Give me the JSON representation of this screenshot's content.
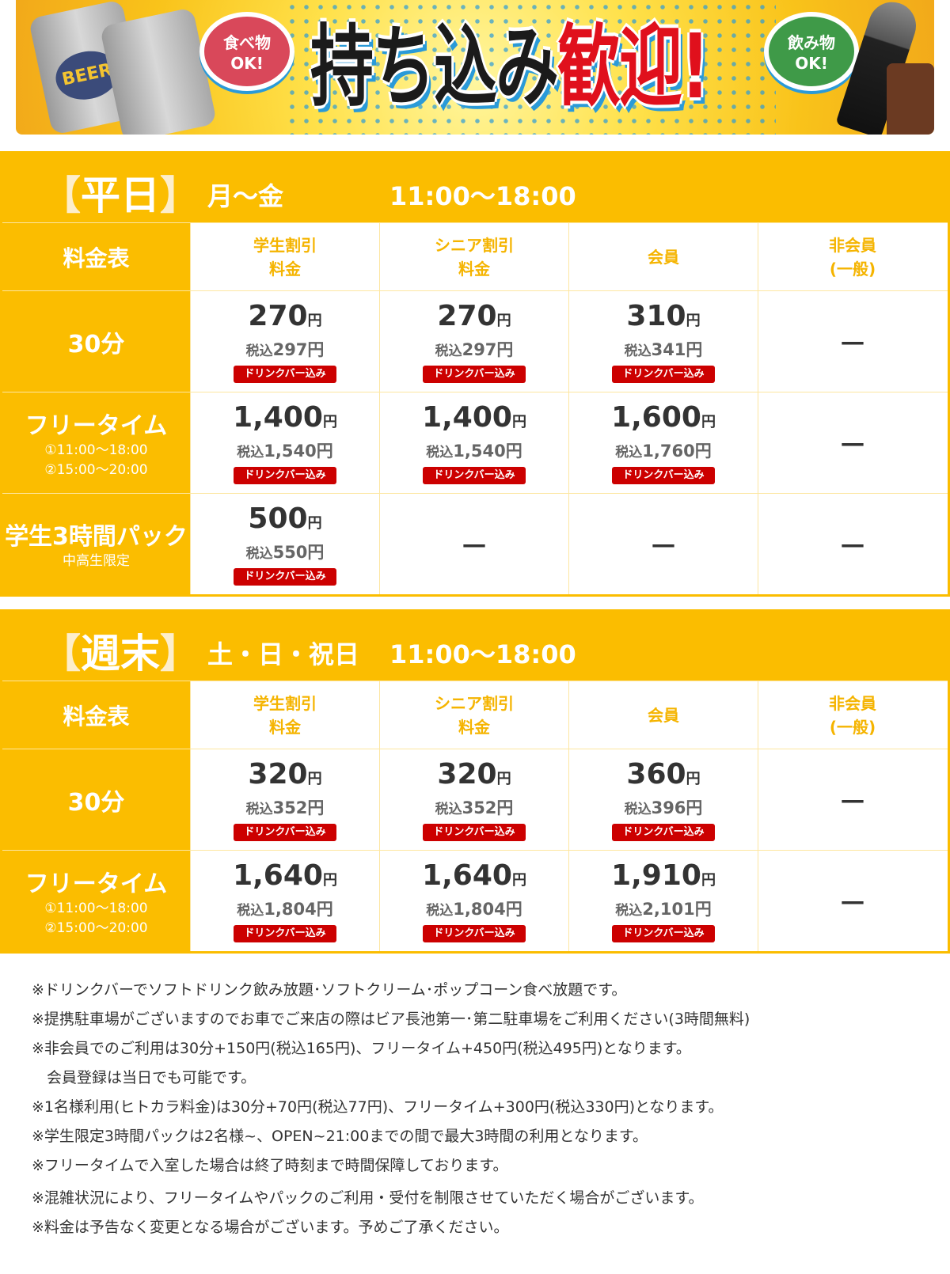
{
  "banner": {
    "title_black": "持ち込み",
    "title_red": "歓迎!",
    "food_bubble": [
      "食べ物",
      "OK!"
    ],
    "drink_bubble": [
      "飲み物",
      "OK!"
    ],
    "can_label": "BEER"
  },
  "colors": {
    "accent": "#fbbd00",
    "badge": "#cc0000",
    "header_text": "#f5b400"
  },
  "sections": [
    {
      "tag_open": "【",
      "tag": "平日",
      "tag_close": "】",
      "days": "月～金",
      "hours": "11:00～18:00",
      "corner": "料金表",
      "columns": [
        [
          "学生割引",
          "料金"
        ],
        [
          "シニア割引",
          "料金"
        ],
        [
          "会員"
        ],
        [
          "非会員",
          "(一般)"
        ]
      ],
      "rows": [
        {
          "name": "30分",
          "sub": [],
          "cells": [
            {
              "price": "270",
              "yen": "円",
              "tax_label": "税込",
              "tax": "297",
              "tax_yen": "円",
              "badge": "ドリンクバー込み"
            },
            {
              "price": "270",
              "yen": "円",
              "tax_label": "税込",
              "tax": "297",
              "tax_yen": "円",
              "badge": "ドリンクバー込み"
            },
            {
              "price": "310",
              "yen": "円",
              "tax_label": "税込",
              "tax": "341",
              "tax_yen": "円",
              "badge": "ドリンクバー込み"
            },
            {
              "dash": "－"
            }
          ]
        },
        {
          "name": "フリータイム",
          "sub": [
            "①11:00～18:00",
            "②15:00～20:00"
          ],
          "cells": [
            {
              "price": "1,400",
              "yen": "円",
              "tax_label": "税込",
              "tax": "1,540",
              "tax_yen": "円",
              "badge": "ドリンクバー込み"
            },
            {
              "price": "1,400",
              "yen": "円",
              "tax_label": "税込",
              "tax": "1,540",
              "tax_yen": "円",
              "badge": "ドリンクバー込み"
            },
            {
              "price": "1,600",
              "yen": "円",
              "tax_label": "税込",
              "tax": "1,760",
              "tax_yen": "円",
              "badge": "ドリンクバー込み"
            },
            {
              "dash": "－"
            }
          ]
        },
        {
          "name": "学生3時間パック",
          "sub": [
            "中高生限定"
          ],
          "cells": [
            {
              "price": "500",
              "yen": "円",
              "tax_label": "税込",
              "tax": "550",
              "tax_yen": "円",
              "badge": "ドリンクバー込み"
            },
            {
              "dash": "－"
            },
            {
              "dash": "－"
            },
            {
              "dash": "－"
            }
          ]
        }
      ]
    },
    {
      "tag_open": "【",
      "tag": "週末",
      "tag_close": "】",
      "days": "土・日・祝日",
      "hours": "11:00～18:00",
      "corner": "料金表",
      "columns": [
        [
          "学生割引",
          "料金"
        ],
        [
          "シニア割引",
          "料金"
        ],
        [
          "会員"
        ],
        [
          "非会員",
          "(一般)"
        ]
      ],
      "rows": [
        {
          "name": "30分",
          "sub": [],
          "cells": [
            {
              "price": "320",
              "yen": "円",
              "tax_label": "税込",
              "tax": "352",
              "tax_yen": "円",
              "badge": "ドリンクバー込み"
            },
            {
              "price": "320",
              "yen": "円",
              "tax_label": "税込",
              "tax": "352",
              "tax_yen": "円",
              "badge": "ドリンクバー込み"
            },
            {
              "price": "360",
              "yen": "円",
              "tax_label": "税込",
              "tax": "396",
              "tax_yen": "円",
              "badge": "ドリンクバー込み"
            },
            {
              "dash": "－"
            }
          ]
        },
        {
          "name": "フリータイム",
          "sub": [
            "①11:00～18:00",
            "②15:00～20:00"
          ],
          "cells": [
            {
              "price": "1,640",
              "yen": "円",
              "tax_label": "税込",
              "tax": "1,804",
              "tax_yen": "円",
              "badge": "ドリンクバー込み"
            },
            {
              "price": "1,640",
              "yen": "円",
              "tax_label": "税込",
              "tax": "1,804",
              "tax_yen": "円",
              "badge": "ドリンクバー込み"
            },
            {
              "price": "1,910",
              "yen": "円",
              "tax_label": "税込",
              "tax": "2,101",
              "tax_yen": "円",
              "badge": "ドリンクバー込み"
            },
            {
              "dash": "－"
            }
          ]
        }
      ]
    }
  ],
  "notes": [
    "※ドリンクバーでソフトドリンク飲み放題･ソフトクリーム･ポップコーン食べ放題です。",
    "※提携駐車場がございますのでお車でご来店の際はビア長池第一･第二駐車場をご利用ください(3時間無料)",
    "※非会員でのご利用は30分+150円(税込165円)、フリータイム+450円(税込495円)となります。",
    "　会員登録は当日でも可能です。",
    "※1名様利用(ヒトカラ料金)は30分+70円(税込77円)、フリータイム+300円(税込330円)となります。",
    "※学生限定3時間パックは2名様~、OPEN~21:00までの間で最大3時間の利用となります。",
    "※フリータイムで入室した場合は終了時刻まで時間保障しております。",
    "※混雑状況により、フリータイムやパックのご利用・受付を制限させていただく場合がございます。",
    "※料金は予告なく変更となる場合がございます。予めご了承ください。"
  ]
}
